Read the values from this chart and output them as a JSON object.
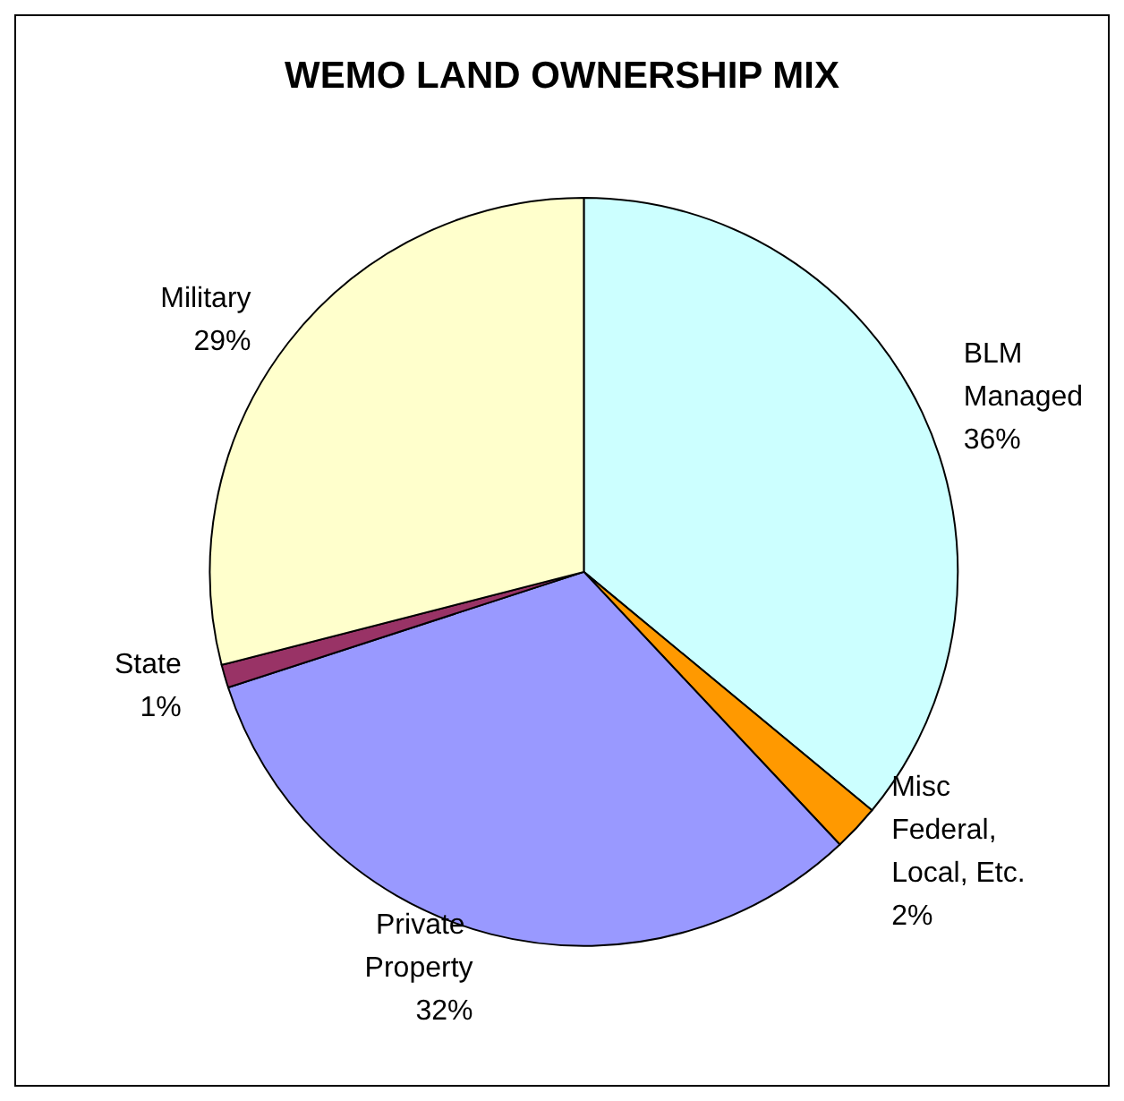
{
  "chart_data": {
    "type": "pie",
    "title": "WEMO LAND OWNERSHIP MIX",
    "categories": [
      "BLM Managed",
      "Misc Federal, Local, Etc.",
      "Private Property",
      "State",
      "Military"
    ],
    "values": [
      36,
      2,
      32,
      1,
      29
    ],
    "colors": [
      "#ccffff",
      "#ff9900",
      "#9999ff",
      "#993366",
      "#ffffcc"
    ],
    "value_labels": [
      "36%",
      "2%",
      "32%",
      "1%",
      "29%"
    ],
    "legend": false
  }
}
